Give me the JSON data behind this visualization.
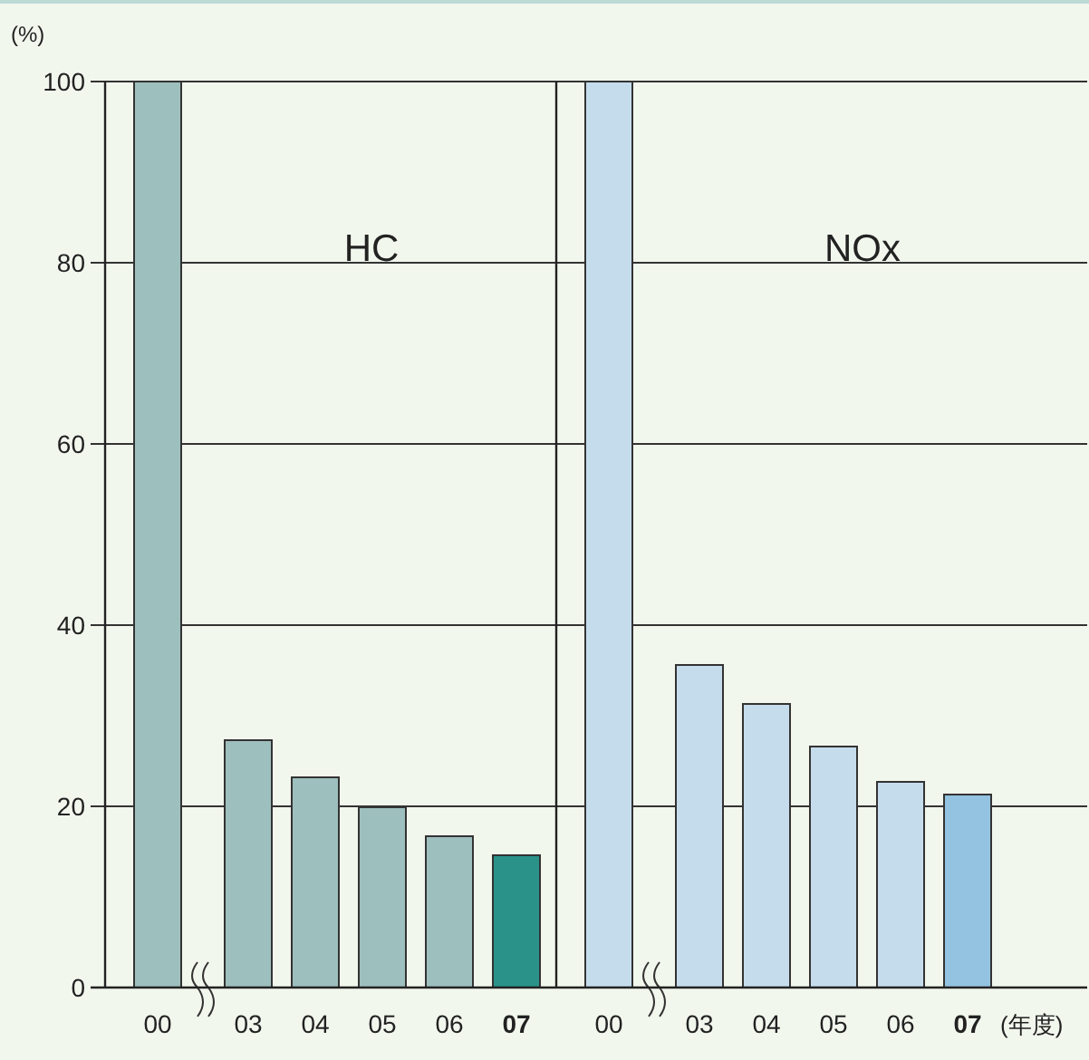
{
  "chart_data": [
    {
      "type": "bar",
      "title": "HC",
      "ylabel": "(%)",
      "categories": [
        "00",
        "03",
        "04",
        "05",
        "06",
        "07"
      ],
      "values": [
        100,
        27.3,
        23.2,
        19.9,
        16.7,
        14.6
      ],
      "colors": [
        "#9dbfbd",
        "#9dbfbd",
        "#9dbfbd",
        "#9dbfbd",
        "#9dbfbd",
        "#2a9289"
      ],
      "ylim": [
        0,
        100
      ],
      "yticks": [
        0,
        20,
        40,
        60,
        80,
        100
      ],
      "grid": "y"
    },
    {
      "type": "bar",
      "title": "NOx",
      "xlabel": "(年度)",
      "categories": [
        "00",
        "03",
        "04",
        "05",
        "06",
        "07"
      ],
      "values": [
        100,
        35.6,
        31.3,
        26.6,
        22.7,
        21.3
      ],
      "colors": [
        "#c5dcec",
        "#c5dcec",
        "#c5dcec",
        "#c5dcec",
        "#c5dcec",
        "#93c3e1"
      ],
      "ylim": [
        0,
        100
      ],
      "yticks": [
        0,
        20,
        40,
        60,
        80,
        100
      ],
      "grid": "y",
      "tick_labels": "x"
    }
  ]
}
